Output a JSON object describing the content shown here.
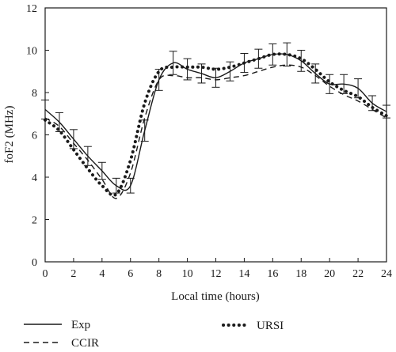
{
  "chart_data": {
    "type": "line",
    "title": "",
    "xlabel": "Local time (hours)",
    "ylabel": "foF2 (MHz)",
    "xlim": [
      0,
      24
    ],
    "ylim": [
      0,
      12
    ],
    "xticks": [
      "0",
      "2",
      "4",
      "6",
      "8",
      "10",
      "12",
      "14",
      "16",
      "18",
      "20",
      "22",
      "24"
    ],
    "yticks": [
      "0",
      "2",
      "4",
      "6",
      "8",
      "10",
      "12"
    ],
    "grid": false,
    "legend_position": "bottom",
    "series": [
      {
        "name": "Exp",
        "style": "solid",
        "color": "#1a1a1a",
        "points": [
          [
            0,
            7.2
          ],
          [
            1,
            6.6
          ],
          [
            2,
            5.8
          ],
          [
            3,
            5.0
          ],
          [
            4,
            4.3
          ],
          [
            5,
            3.6
          ],
          [
            6,
            3.6
          ],
          [
            7,
            6.2
          ],
          [
            8,
            8.6
          ],
          [
            9,
            9.4
          ],
          [
            10,
            9.1
          ],
          [
            11,
            8.9
          ],
          [
            12,
            8.7
          ],
          [
            13,
            9.0
          ],
          [
            14,
            9.4
          ],
          [
            15,
            9.6
          ],
          [
            16,
            9.8
          ],
          [
            17,
            9.8
          ],
          [
            18,
            9.5
          ],
          [
            19,
            8.9
          ],
          [
            20,
            8.4
          ],
          [
            21,
            8.4
          ],
          [
            22,
            8.2
          ],
          [
            23,
            7.5
          ],
          [
            24,
            7.1
          ]
        ],
        "error": [
          0.45,
          0.45,
          0.45,
          0.45,
          0.4,
          0.35,
          0.35,
          0.5,
          0.5,
          0.55,
          0.5,
          0.45,
          0.45,
          0.45,
          0.45,
          0.45,
          0.5,
          0.55,
          0.5,
          0.45,
          0.45,
          0.45,
          0.45,
          0.35,
          0.3
        ]
      },
      {
        "name": "CCIR",
        "style": "dashed",
        "color": "#1a1a1a",
        "points": [
          [
            0,
            6.8
          ],
          [
            1,
            6.4
          ],
          [
            2,
            5.6
          ],
          [
            3,
            4.8
          ],
          [
            4,
            3.9
          ],
          [
            5,
            3.0
          ],
          [
            6,
            4.2
          ],
          [
            7,
            6.8
          ],
          [
            8,
            8.6
          ],
          [
            9,
            8.8
          ],
          [
            10,
            8.7
          ],
          [
            11,
            8.7
          ],
          [
            12,
            8.6
          ],
          [
            13,
            8.7
          ],
          [
            14,
            8.8
          ],
          [
            15,
            9.0
          ],
          [
            16,
            9.2
          ],
          [
            17,
            9.3
          ],
          [
            18,
            9.2
          ],
          [
            19,
            8.8
          ],
          [
            20,
            8.3
          ],
          [
            21,
            7.9
          ],
          [
            22,
            7.6
          ],
          [
            23,
            7.2
          ],
          [
            24,
            6.8
          ]
        ]
      },
      {
        "name": "URSI",
        "style": "dotted",
        "color": "#1a1a1a",
        "points": [
          [
            0,
            6.7
          ],
          [
            1,
            6.2
          ],
          [
            2,
            5.3
          ],
          [
            3,
            4.4
          ],
          [
            4,
            3.6
          ],
          [
            5,
            3.2
          ],
          [
            6,
            4.8
          ],
          [
            7,
            7.5
          ],
          [
            8,
            9.0
          ],
          [
            9,
            9.2
          ],
          [
            10,
            9.2
          ],
          [
            11,
            9.2
          ],
          [
            12,
            9.1
          ],
          [
            13,
            9.2
          ],
          [
            14,
            9.4
          ],
          [
            15,
            9.6
          ],
          [
            16,
            9.8
          ],
          [
            17,
            9.8
          ],
          [
            18,
            9.6
          ],
          [
            19,
            9.1
          ],
          [
            20,
            8.5
          ],
          [
            21,
            8.1
          ],
          [
            22,
            7.8
          ],
          [
            23,
            7.3
          ],
          [
            24,
            6.9
          ]
        ]
      }
    ]
  }
}
